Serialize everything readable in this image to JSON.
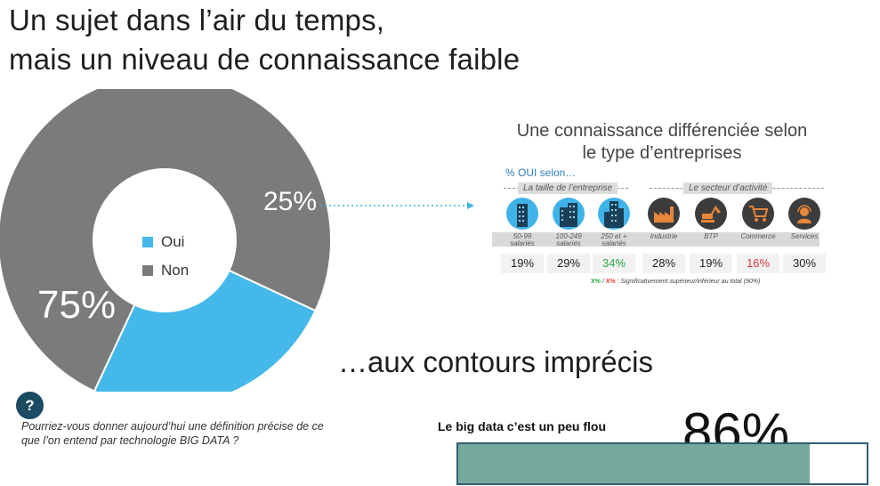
{
  "title": {
    "line1": "Un sujet dans l’air du temps,",
    "line2": "mais un niveau de connaissance faible"
  },
  "chart_data": [
    {
      "type": "pie",
      "style": "donut",
      "slices": [
        {
          "label": "Oui",
          "value": 25,
          "display": "25%",
          "color": "#45b8ea"
        },
        {
          "label": "Non",
          "value": 75,
          "display": "75%",
          "color": "#7b7b7b"
        }
      ],
      "legend": [
        "Oui",
        "Non"
      ],
      "legend_placement": "center"
    },
    {
      "type": "table",
      "title_line1": "Une connaissance différenciée selon",
      "title_line2": "le type d’entreprises",
      "subtitle": "% OUI selon…",
      "groups": [
        {
          "label": "La taille de l’entreprise",
          "color": "#3fb3e8",
          "categories": [
            {
              "label": "50-99\nsalariés",
              "icon": "building-icon",
              "value": 19,
              "display": "19%",
              "flag": "none"
            },
            {
              "label": "100-249\nsalariés",
              "icon": "office-building-icon",
              "value": 29,
              "display": "29%",
              "flag": "none"
            },
            {
              "label": "250 et +\nsalariés",
              "icon": "skyscraper-icon",
              "value": 34,
              "display": "34%",
              "flag": "higher"
            }
          ]
        },
        {
          "label": "Le secteur d’activité",
          "color": "#3c3c3c",
          "categories": [
            {
              "label": "Industrie",
              "icon": "factory-icon",
              "value": 28,
              "display": "28%",
              "flag": "none"
            },
            {
              "label": "BTP",
              "icon": "excavator-icon",
              "value": 19,
              "display": "19%",
              "flag": "none"
            },
            {
              "label": "Commerce",
              "icon": "shopping-cart-icon",
              "value": 16,
              "display": "16%",
              "flag": "lower"
            },
            {
              "label": "Services",
              "icon": "headset-icon",
              "value": 30,
              "display": "30%",
              "flag": "none"
            }
          ]
        }
      ],
      "note": {
        "green_mark": "X%",
        "separator": " / ",
        "red_mark": "X%",
        "text": " : Significativement supérieur/inférieur au total (90%)"
      }
    },
    {
      "type": "bar",
      "orientation": "horizontal",
      "categories": [
        "Le big data c’est un peu flou"
      ],
      "values": [
        86
      ],
      "display": "86%",
      "xlim": [
        0,
        100
      ],
      "color": "#76a89e"
    }
  ],
  "section2_title": "…aux contours imprécis",
  "question": {
    "icon_label": "?",
    "text": "Pourriez-vous donner aujourd’hui une définition précise de ce que l’on entend par technologie BIG DATA ?"
  },
  "colors": {
    "accent_blue": "#45b8ea",
    "grey": "#7b7b7b",
    "dark": "#3c3c3c",
    "bar_green": "#76a89e",
    "bar_border": "#2f5e73",
    "positive": "#2aa84a",
    "negative": "#e23a3a"
  }
}
